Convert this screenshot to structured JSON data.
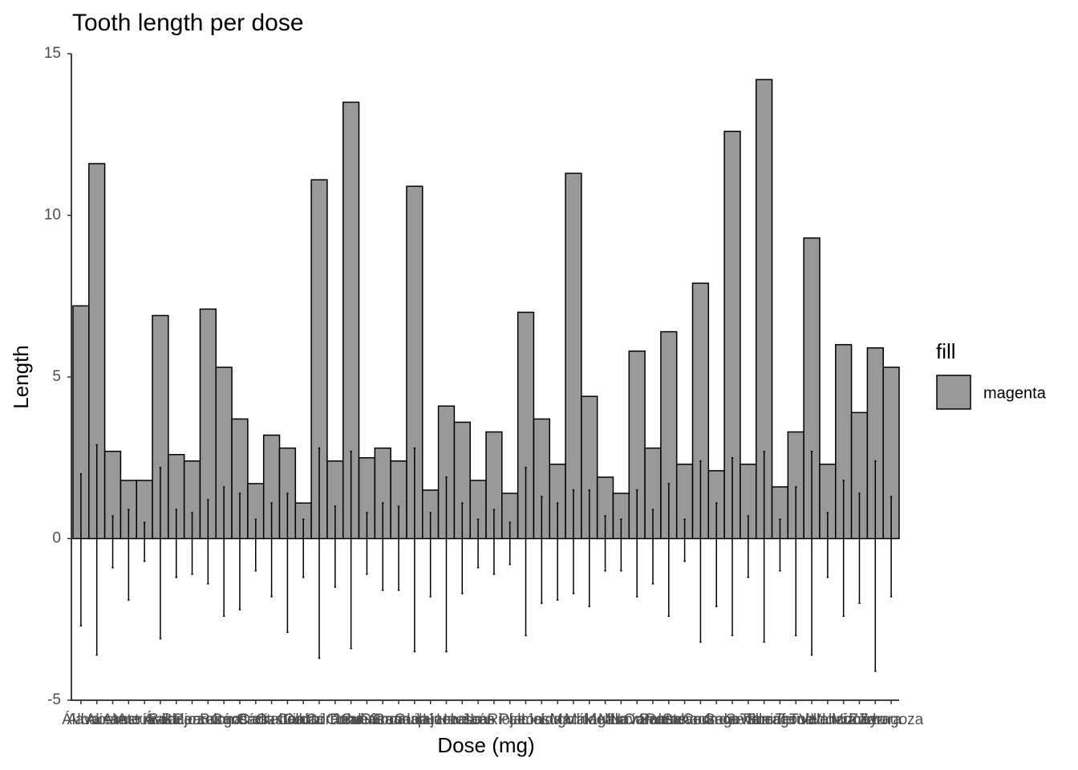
{
  "chart_data": {
    "type": "bar",
    "title": "Tooth length per dose",
    "x_label": "Dose (mg)",
    "y_label": "Length",
    "legend_title": "fill",
    "categories": [
      "Álava",
      "Albacete",
      "Alicante",
      "Almería",
      "Asturias",
      "Ávila",
      "Badajoz",
      "Baleares",
      "Barcelona",
      "Burgos",
      "Cáceres",
      "Cádiz",
      "Cantabria",
      "Castellón",
      "Ceuta",
      "Ciudad Real",
      "Córdoba",
      "Coruña",
      "Cuenca",
      "Girona",
      "Granada",
      "Guadalajara",
      "Guipúzcoa",
      "Huelva",
      "Huesca",
      "Jaén",
      "La Rioja",
      "Las Palmas",
      "León",
      "Lleida",
      "Lugo",
      "Madrid",
      "Málaga",
      "Melilla",
      "Murcia",
      "Navarra",
      "Ourense",
      "Palencia",
      "Pontevedra",
      "Salamanca",
      "Santa Cruz de Tenerife",
      "Segovia",
      "Sevilla",
      "Soria",
      "Tarragona",
      "Teruel",
      "Toledo",
      "Valencia",
      "Valladolid",
      "Vizcaya",
      "Zamora",
      "Zaragoza"
    ],
    "series": [
      {
        "name": "magenta",
        "color": "#999999",
        "values": [
          7.2,
          11.6,
          2.7,
          1.8,
          1.8,
          6.9,
          2.6,
          2.4,
          7.1,
          5.3,
          3.7,
          1.7,
          3.2,
          2.8,
          1.1,
          11.1,
          2.4,
          13.5,
          2.5,
          2.8,
          2.4,
          10.9,
          1.5,
          4.1,
          3.6,
          1.8,
          3.3,
          1.4,
          7.0,
          3.7,
          2.3,
          11.3,
          4.4,
          1.9,
          1.4,
          5.8,
          2.8,
          6.4,
          2.3,
          7.9,
          2.1,
          12.6,
          2.3,
          14.2,
          1.6,
          3.3,
          9.3,
          2.3,
          6.0,
          3.9,
          5.9,
          5.3
        ],
        "error_low": [
          -2.7,
          -3.6,
          -0.9,
          -1.9,
          -0.7,
          -3.1,
          -1.2,
          -1.1,
          -1.4,
          -2.4,
          -2.2,
          -1.0,
          -1.8,
          -2.9,
          -1.2,
          -3.7,
          -1.5,
          -3.4,
          -1.1,
          -1.6,
          -1.6,
          -3.5,
          -1.8,
          -3.5,
          -1.7,
          -0.9,
          -1.1,
          -0.8,
          -3.0,
          -2.0,
          -1.9,
          -1.7,
          -2.1,
          -1.0,
          -1.0,
          -1.8,
          -1.4,
          -2.4,
          -0.7,
          -3.2,
          -2.1,
          -3.0,
          -1.2,
          -3.2,
          -1.0,
          -3.0,
          -3.6,
          -1.2,
          -2.4,
          -2.0,
          -4.1,
          -1.8
        ],
        "error_high": [
          2.0,
          2.9,
          0.7,
          0.9,
          0.5,
          2.2,
          0.9,
          0.8,
          1.2,
          1.6,
          1.4,
          0.6,
          1.1,
          1.4,
          0.6,
          2.8,
          1.0,
          2.7,
          0.8,
          1.1,
          1.0,
          2.8,
          0.8,
          1.9,
          1.1,
          0.6,
          0.9,
          0.5,
          2.2,
          1.3,
          1.1,
          1.5,
          1.5,
          0.7,
          0.6,
          1.5,
          0.9,
          1.7,
          0.6,
          2.4,
          1.1,
          2.5,
          0.7,
          2.7,
          0.6,
          1.6,
          2.7,
          0.8,
          1.8,
          1.4,
          2.4,
          1.3
        ]
      }
    ],
    "ylim": [
      -5,
      15
    ],
    "yticks": [
      -5,
      0,
      5,
      10,
      15
    ],
    "grid": false
  }
}
